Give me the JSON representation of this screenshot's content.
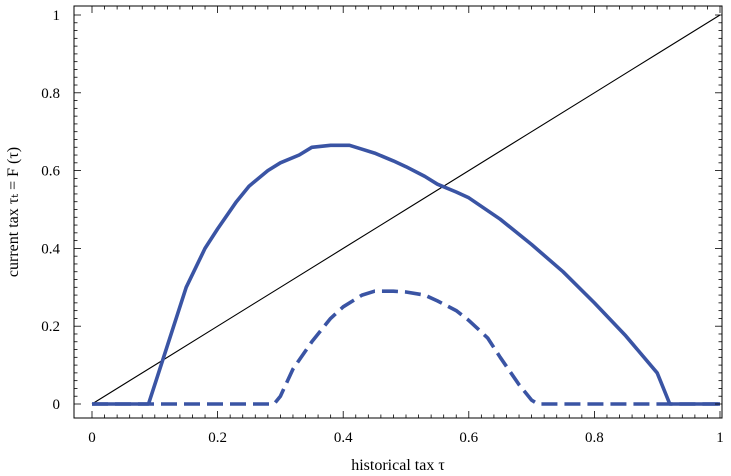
{
  "chart_data": {
    "type": "line",
    "title": "",
    "xlabel": "historical tax τ",
    "ylabel": "current tax τₜ = F (τ)",
    "xlim": [
      0,
      1
    ],
    "ylim": [
      0,
      1
    ],
    "xticks": [
      {
        "value": 0,
        "label": "0"
      },
      {
        "value": 0.2,
        "label": "0.2"
      },
      {
        "value": 0.4,
        "label": "0.4"
      },
      {
        "value": 0.6,
        "label": "0.6"
      },
      {
        "value": 0.8,
        "label": "0.8"
      },
      {
        "value": 1,
        "label": "1"
      }
    ],
    "yticks": [
      {
        "value": 0,
        "label": "0"
      },
      {
        "value": 0.2,
        "label": "0.2"
      },
      {
        "value": 0.4,
        "label": "0.4"
      },
      {
        "value": 0.6,
        "label": "0.6"
      },
      {
        "value": 0.8,
        "label": "0.8"
      },
      {
        "value": 1,
        "label": "1"
      }
    ],
    "grid": false,
    "legend": "none",
    "series": [
      {
        "style": "solid-thin",
        "color": "#000000",
        "x": [
          0,
          0.1,
          0.2,
          0.3,
          0.4,
          0.5,
          0.6,
          0.7,
          0.8,
          0.9,
          1.0
        ],
        "y": [
          0,
          0.1,
          0.2,
          0.3,
          0.4,
          0.5,
          0.6,
          0.7,
          0.8,
          0.9,
          1.0
        ]
      },
      {
        "style": "solid-thick",
        "color": "#3a54a4",
        "x": [
          0,
          0.09,
          0.1,
          0.12,
          0.15,
          0.18,
          0.2,
          0.23,
          0.25,
          0.28,
          0.3,
          0.33,
          0.35,
          0.38,
          0.41,
          0.43,
          0.45,
          0.48,
          0.5,
          0.53,
          0.55,
          0.58,
          0.6,
          0.65,
          0.7,
          0.75,
          0.8,
          0.85,
          0.9,
          0.92,
          1.0
        ],
        "y": [
          0,
          0,
          0.05,
          0.15,
          0.3,
          0.4,
          0.45,
          0.52,
          0.56,
          0.6,
          0.62,
          0.64,
          0.66,
          0.665,
          0.665,
          0.655,
          0.645,
          0.625,
          0.61,
          0.585,
          0.565,
          0.545,
          0.53,
          0.475,
          0.41,
          0.34,
          0.26,
          0.175,
          0.08,
          0.0,
          0.0
        ]
      },
      {
        "style": "dashed-thick",
        "color": "#3a54a4",
        "x": [
          0,
          0.29,
          0.3,
          0.32,
          0.35,
          0.38,
          0.4,
          0.43,
          0.45,
          0.48,
          0.5,
          0.53,
          0.55,
          0.58,
          0.6,
          0.63,
          0.65,
          0.68,
          0.7,
          0.71,
          1.0
        ],
        "y": [
          0,
          0,
          0.02,
          0.09,
          0.16,
          0.22,
          0.25,
          0.28,
          0.29,
          0.29,
          0.288,
          0.28,
          0.265,
          0.24,
          0.215,
          0.17,
          0.12,
          0.05,
          0.01,
          0.0,
          0.0
        ]
      }
    ]
  }
}
